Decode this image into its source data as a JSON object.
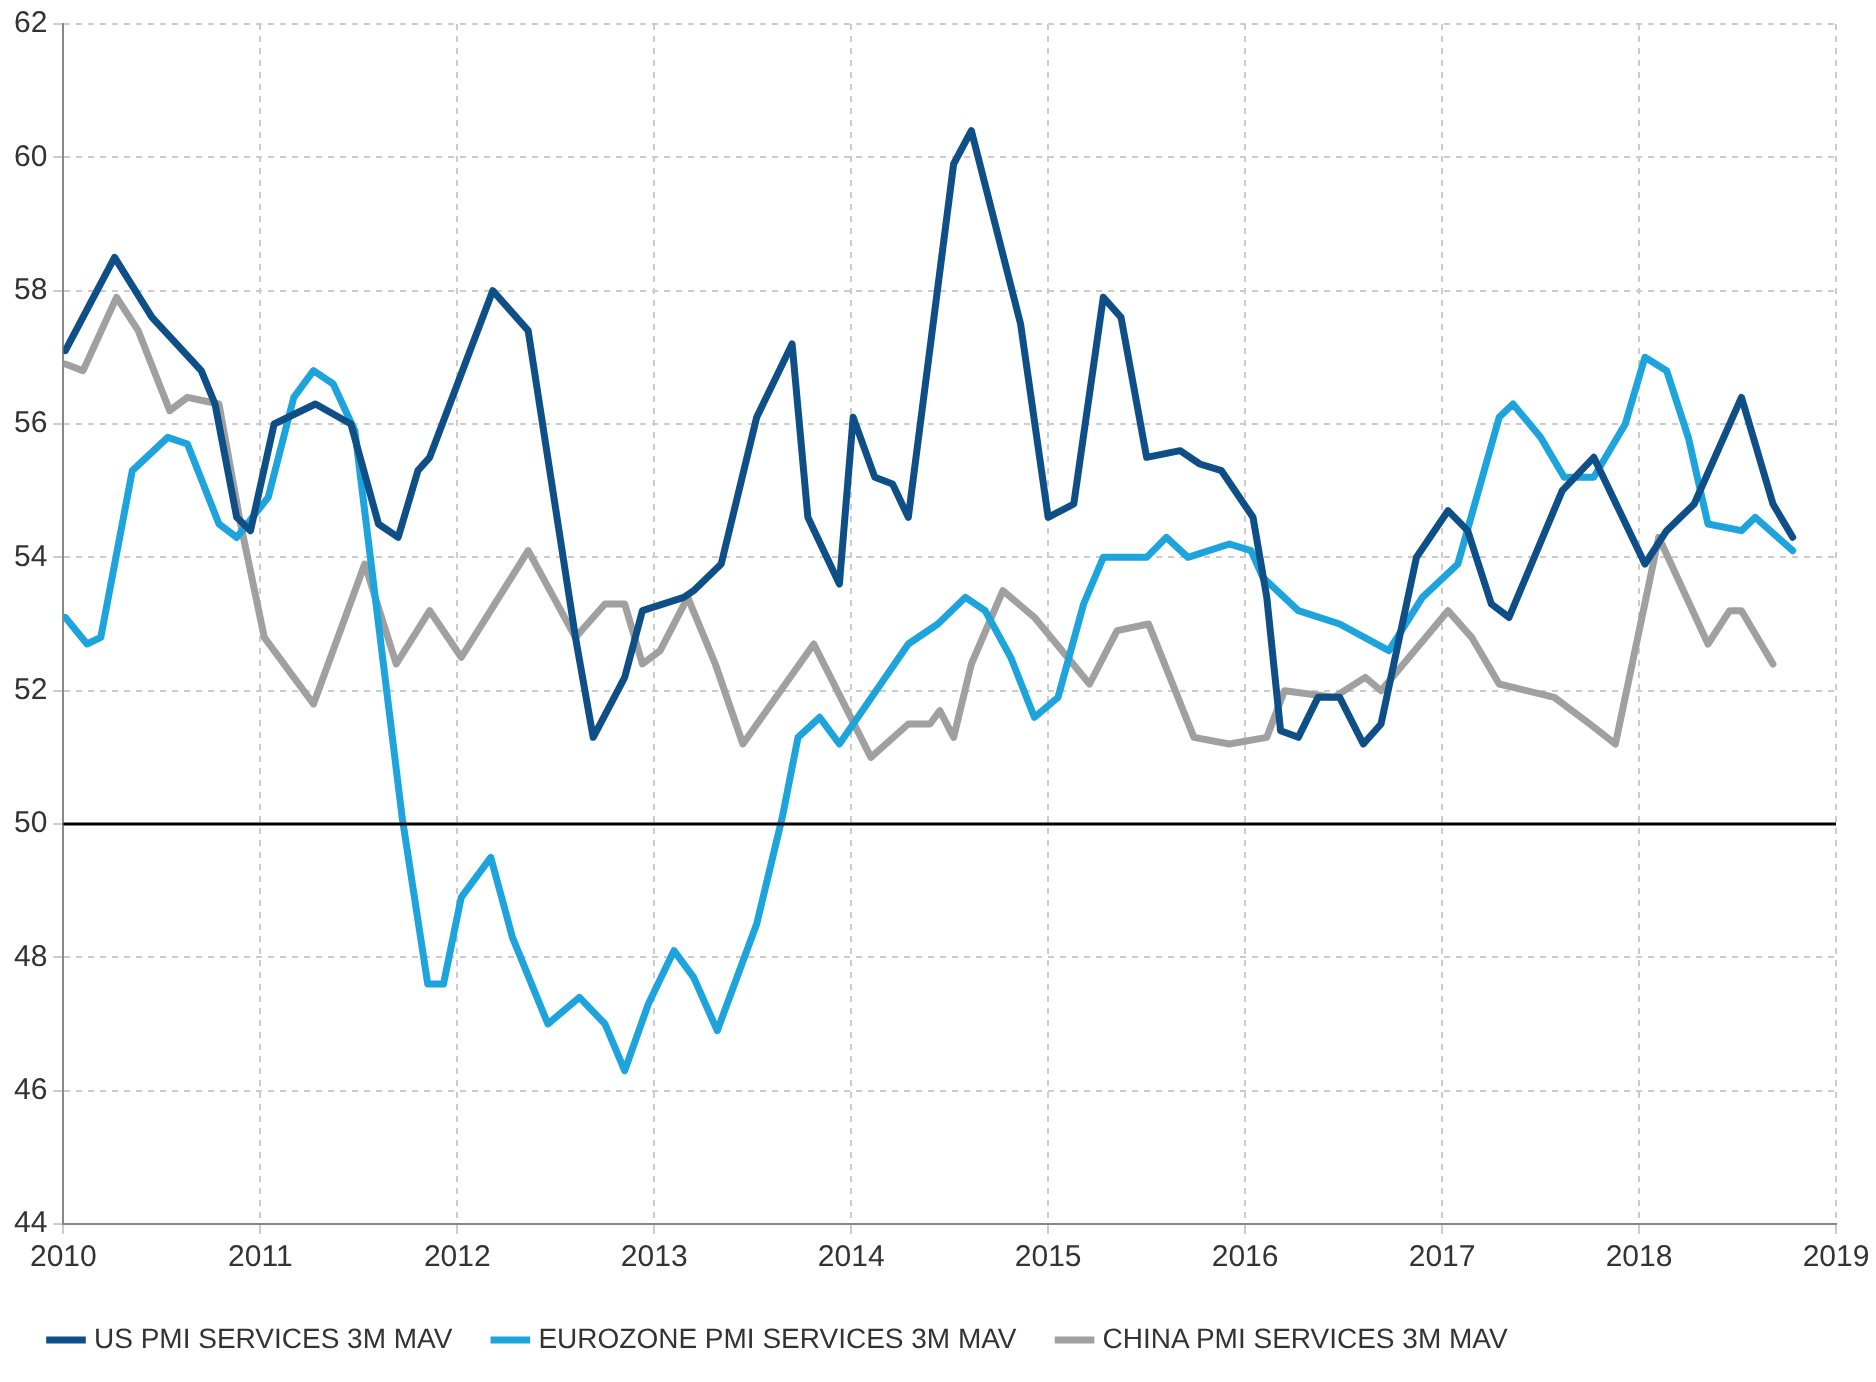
{
  "chart_data": {
    "type": "line",
    "xlim": [
      2010,
      2019
    ],
    "xticks": [
      2010,
      2011,
      2012,
      2013,
      2014,
      2015,
      2016,
      2017,
      2018,
      2019
    ],
    "ylim": [
      44,
      62
    ],
    "yticks": [
      44,
      46,
      48,
      50,
      52,
      54,
      56,
      58,
      60,
      62
    ],
    "grid": true,
    "legend": "bottom",
    "marker": "none",
    "line_style": "solid",
    "ref_lines": [
      {
        "axis": "y",
        "value": 50,
        "color": "#000000"
      }
    ],
    "series": [
      {
        "name": "US PMI SERVICES 3M MAV",
        "color": "#0d4f86",
        "x": [
          2010.01,
          2010.26,
          2010.45,
          2010.7,
          2010.77,
          2010.88,
          2010.95,
          2011.07,
          2011.28,
          2011.46,
          2011.6,
          2011.7,
          2011.8,
          2011.86,
          2012.18,
          2012.36,
          2012.6,
          2012.69,
          2012.85,
          2012.94,
          2013.15,
          2013.2,
          2013.34,
          2013.52,
          2013.7,
          2013.78,
          2013.94,
          2014.01,
          2014.12,
          2014.21,
          2014.29,
          2014.52,
          2014.61,
          2014.86,
          2015.0,
          2015.13,
          2015.28,
          2015.37,
          2015.5,
          2015.67,
          2015.77,
          2015.88,
          2016.04,
          2016.11,
          2016.18,
          2016.27,
          2016.37,
          2016.48,
          2016.6,
          2016.69,
          2016.87,
          2017.03,
          2017.13,
          2017.25,
          2017.34,
          2017.61,
          2017.77,
          2018.03,
          2018.14,
          2018.28,
          2018.52,
          2018.68,
          2018.78
        ],
        "values": [
          57.1,
          58.5,
          57.6,
          56.8,
          56.3,
          54.6,
          54.4,
          56.0,
          56.3,
          56.0,
          54.5,
          54.3,
          55.3,
          55.5,
          58.0,
          57.4,
          52.8,
          51.3,
          52.2,
          53.2,
          53.4,
          53.5,
          53.9,
          56.1,
          57.2,
          54.6,
          53.6,
          56.1,
          55.2,
          55.1,
          54.6,
          59.9,
          60.4,
          57.5,
          54.6,
          54.8,
          57.9,
          57.6,
          55.5,
          55.6,
          55.4,
          55.3,
          54.6,
          53.4,
          51.4,
          51.3,
          51.9,
          51.9,
          51.2,
          51.5,
          54.0,
          54.7,
          54.4,
          53.3,
          53.1,
          55.0,
          55.5,
          53.9,
          54.4,
          54.8,
          56.4,
          54.8,
          54.3
        ]
      },
      {
        "name": "EUROZONE PMI SERVICES 3M MAV",
        "color": "#1ea4dc",
        "x": [
          2010.01,
          2010.12,
          2010.19,
          2010.35,
          2010.53,
          2010.63,
          2010.79,
          2010.88,
          2011.04,
          2011.17,
          2011.27,
          2011.37,
          2011.48,
          2011.72,
          2011.85,
          2011.93,
          2012.02,
          2012.17,
          2012.28,
          2012.46,
          2012.62,
          2012.75,
          2012.85,
          2012.97,
          2013.1,
          2013.2,
          2013.32,
          2013.52,
          2013.65,
          2013.73,
          2013.84,
          2013.94,
          2014.08,
          2014.29,
          2014.44,
          2014.58,
          2014.68,
          2014.81,
          2014.93,
          2015.05,
          2015.18,
          2015.28,
          2015.5,
          2015.6,
          2015.71,
          2015.92,
          2016.03,
          2016.09,
          2016.27,
          2016.48,
          2016.73,
          2016.9,
          2017.08,
          2017.29,
          2017.36,
          2017.5,
          2017.62,
          2017.77,
          2017.93,
          2018.03,
          2018.14,
          2018.25,
          2018.35,
          2018.52,
          2018.59,
          2018.78
        ],
        "values": [
          53.1,
          52.7,
          52.8,
          55.3,
          55.8,
          55.7,
          54.5,
          54.3,
          54.9,
          56.4,
          56.8,
          56.6,
          55.9,
          50.1,
          47.6,
          47.6,
          48.9,
          49.5,
          48.3,
          47.0,
          47.4,
          47.0,
          46.3,
          47.3,
          48.1,
          47.7,
          46.9,
          48.5,
          50.1,
          51.3,
          51.6,
          51.2,
          51.8,
          52.7,
          53.0,
          53.4,
          53.2,
          52.5,
          51.6,
          51.9,
          53.3,
          54.0,
          54.0,
          54.3,
          54.0,
          54.2,
          54.1,
          53.7,
          53.2,
          53.0,
          52.6,
          53.4,
          53.9,
          56.1,
          56.3,
          55.8,
          55.2,
          55.2,
          56.0,
          57.0,
          56.8,
          55.8,
          54.5,
          54.4,
          54.6,
          54.1
        ]
      },
      {
        "name": "CHINA PMI SERVICES 3M MAV",
        "color": "#a0a0a0",
        "x": [
          2010.01,
          2010.1,
          2010.27,
          2010.38,
          2010.54,
          2010.63,
          2010.79,
          2010.9,
          2011.02,
          2011.27,
          2011.53,
          2011.69,
          2011.86,
          2012.02,
          2012.36,
          2012.6,
          2012.75,
          2012.85,
          2012.94,
          2013.03,
          2013.17,
          2013.31,
          2013.45,
          2013.81,
          2014.1,
          2014.29,
          2014.4,
          2014.45,
          2014.52,
          2014.61,
          2014.77,
          2014.93,
          2015.21,
          2015.35,
          2015.51,
          2015.74,
          2015.92,
          2016.11,
          2016.2,
          2016.45,
          2016.61,
          2016.69,
          2017.03,
          2017.15,
          2017.29,
          2017.57,
          2017.75,
          2017.88,
          2018.1,
          2018.35,
          2018.46,
          2018.52,
          2018.68
        ],
        "values": [
          56.9,
          56.8,
          57.9,
          57.4,
          56.2,
          56.4,
          56.3,
          54.5,
          52.8,
          51.8,
          53.9,
          52.4,
          53.2,
          52.5,
          54.1,
          52.8,
          53.3,
          53.3,
          52.4,
          52.6,
          53.4,
          52.4,
          51.2,
          52.7,
          51.0,
          51.5,
          51.5,
          51.7,
          51.3,
          52.4,
          53.5,
          53.1,
          52.1,
          52.9,
          53.0,
          51.3,
          51.2,
          51.3,
          52.0,
          51.9,
          52.2,
          52.0,
          53.2,
          52.8,
          52.1,
          51.9,
          51.5,
          51.2,
          54.3,
          52.7,
          53.2,
          53.2,
          52.4
        ]
      }
    ]
  }
}
